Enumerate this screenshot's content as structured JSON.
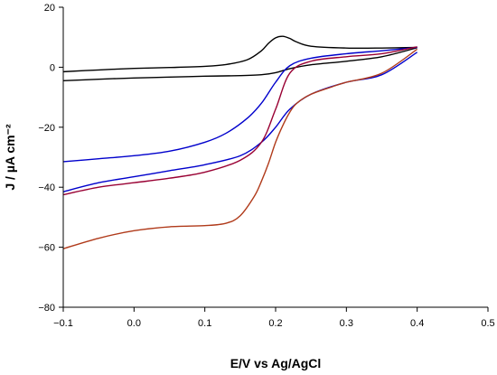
{
  "chart_data": {
    "type": "line",
    "title": "",
    "xlabel": "E/V vs Ag/AgCl",
    "ylabel": "J / µA cm⁻²",
    "xlim": [
      -0.1,
      0.5
    ],
    "ylim": [
      -80,
      20
    ],
    "xticks": [
      -0.1,
      0.0,
      0.1,
      0.2,
      0.3,
      0.4,
      0.5
    ],
    "yticks": [
      -80,
      -60,
      -40,
      -20,
      0,
      20
    ],
    "xtick_labels": [
      "−0.1",
      "0.0",
      "0.1",
      "0.2",
      "0.3",
      "0.4",
      "0.5"
    ],
    "ytick_labels": [
      "−80",
      "−60",
      "−40",
      "−20",
      "0",
      "20"
    ],
    "grid": false,
    "legend": "none",
    "series": [
      {
        "color": "#000000",
        "x": [
          -0.1,
          -0.05,
          0.0,
          0.05,
          0.1,
          0.13,
          0.16,
          0.18,
          0.19,
          0.2,
          0.21,
          0.22,
          0.23,
          0.25,
          0.3,
          0.35,
          0.4
        ],
        "y": [
          -1.5,
          -0.9,
          -0.4,
          -0.1,
          0.3,
          0.9,
          2.5,
          5.5,
          8.0,
          9.8,
          10.3,
          9.6,
          8.4,
          7.0,
          6.4,
          6.4,
          6.6
        ]
      },
      {
        "color": "#000000",
        "x": [
          -0.1,
          -0.05,
          0.0,
          0.05,
          0.1,
          0.15,
          0.18,
          0.2,
          0.22,
          0.25,
          0.3,
          0.35,
          0.4
        ],
        "y": [
          -4.5,
          -4.0,
          -3.6,
          -3.3,
          -3.0,
          -2.8,
          -2.5,
          -1.8,
          -0.5,
          0.8,
          2.0,
          3.5,
          6.5
        ]
      },
      {
        "color": "#0000cc",
        "x": [
          -0.1,
          -0.05,
          0.0,
          0.05,
          0.1,
          0.13,
          0.16,
          0.18,
          0.2,
          0.22,
          0.25,
          0.3,
          0.35,
          0.4
        ],
        "y": [
          -31.5,
          -30.5,
          -29.5,
          -28.0,
          -25.0,
          -22.0,
          -17.0,
          -12.0,
          -5.0,
          0.5,
          3.0,
          4.5,
          5.5,
          6.6
        ]
      },
      {
        "color": "#0000cc",
        "x": [
          -0.1,
          -0.05,
          0.0,
          0.05,
          0.1,
          0.15,
          0.18,
          0.2,
          0.22,
          0.25,
          0.3,
          0.35,
          0.4
        ],
        "y": [
          -41.5,
          -38.5,
          -36.5,
          -34.5,
          -32.5,
          -29.5,
          -25.0,
          -20.0,
          -14.0,
          -9.0,
          -5.0,
          -2.5,
          5.0
        ]
      },
      {
        "color": "#990033",
        "x": [
          -0.1,
          -0.05,
          0.0,
          0.05,
          0.1,
          0.15,
          0.18,
          0.2,
          0.22,
          0.25,
          0.3,
          0.35,
          0.4
        ],
        "y": [
          -42.5,
          -40.0,
          -38.5,
          -37.0,
          -35.0,
          -31.0,
          -25.0,
          -14.0,
          -2.0,
          2.0,
          3.5,
          4.5,
          6.8
        ]
      },
      {
        "color": "#b03a1a",
        "x": [
          -0.1,
          -0.05,
          0.0,
          0.05,
          0.1,
          0.13,
          0.15,
          0.17,
          0.18,
          0.19,
          0.2,
          0.21,
          0.22,
          0.23,
          0.25,
          0.28,
          0.3,
          0.35,
          0.4
        ],
        "y": [
          -60.5,
          -57.0,
          -54.5,
          -53.2,
          -52.8,
          -52.0,
          -49.5,
          -43.0,
          -38.0,
          -32.0,
          -25.0,
          -19.5,
          -15.0,
          -12.0,
          -9.0,
          -6.5,
          -5.0,
          -2.0,
          6.0
        ]
      }
    ]
  }
}
